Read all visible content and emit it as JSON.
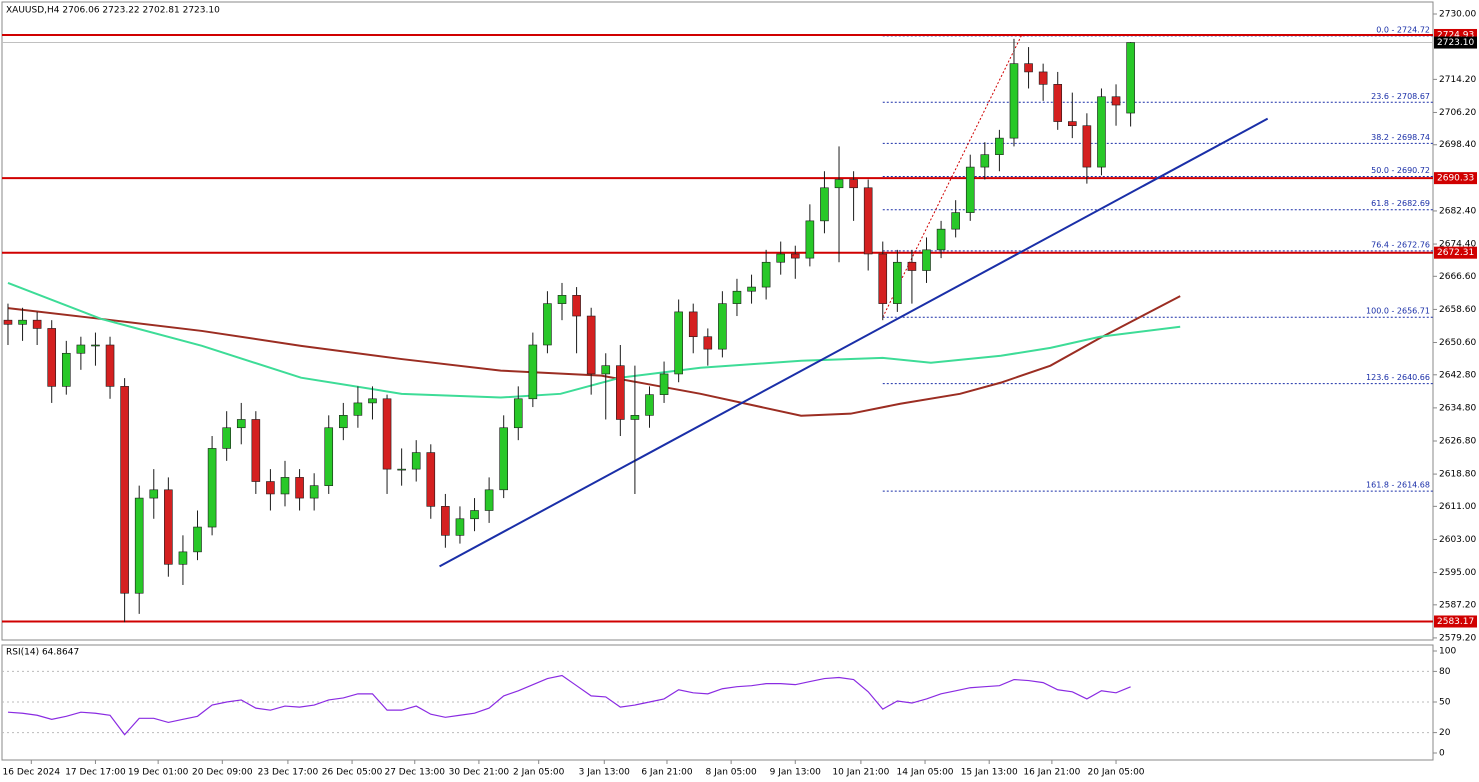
{
  "chart_data": {
    "type": "candlestick",
    "header": "XAUUSD,H4  2706.06 2723.22 2702.81 2723.10",
    "up_color": "#28c828",
    "down_color": "#d42020",
    "outline": "#1a1a1a",
    "xlim": [
      -0.41,
      97.74
    ],
    "ylim": [
      2578.7,
      2732.9
    ],
    "yticks": [
      {
        "value": 2730,
        "label": "2730.00"
      },
      {
        "value": 2714.2,
        "label": "2714.20"
      },
      {
        "value": 2706.2,
        "label": "2706.20"
      },
      {
        "value": 2698.4,
        "label": "2698.40"
      },
      {
        "value": 2682.4,
        "label": "2682.40"
      },
      {
        "value": 2674.4,
        "label": "2674.40"
      },
      {
        "value": 2666.6,
        "label": "2666.60"
      },
      {
        "value": 2658.6,
        "label": "2658.60"
      },
      {
        "value": 2650.6,
        "label": "2650.60"
      },
      {
        "value": 2642.8,
        "label": "2642.80"
      },
      {
        "value": 2634.8,
        "label": "2634.80"
      },
      {
        "value": 2626.8,
        "label": "2626.80"
      },
      {
        "value": 2618.8,
        "label": "2618.80"
      },
      {
        "value": 2611,
        "label": "2611.00"
      },
      {
        "value": 2603,
        "label": "2603.00"
      },
      {
        "value": 2595,
        "label": "2595.00"
      },
      {
        "value": 2587.2,
        "label": "2587.20"
      },
      {
        "value": 2579.2,
        "label": "2579.20"
      }
    ],
    "xticks": [
      {
        "value": 1.6,
        "label": "16 Dec 2024"
      },
      {
        "value": 6,
        "label": "17 Dec 17:00"
      },
      {
        "value": 10.3,
        "label": "19 Dec 01:00"
      },
      {
        "value": 14.7,
        "label": "20 Dec 09:00"
      },
      {
        "value": 19.2,
        "label": "23 Dec 17:00"
      },
      {
        "value": 23.6,
        "label": "26 Dec 05:00"
      },
      {
        "value": 27.9,
        "label": "27 Dec 13:00"
      },
      {
        "value": 32.3,
        "label": "30 Dec 21:00"
      },
      {
        "value": 36.4,
        "label": "2 Jan 05:00"
      },
      {
        "value": 40.9,
        "label": "3 Jan 13:00"
      },
      {
        "value": 45.2,
        "label": "6 Jan 21:00"
      },
      {
        "value": 49.6,
        "label": "8 Jan 05:00"
      },
      {
        "value": 54,
        "label": "9 Jan 13:00"
      },
      {
        "value": 58.5,
        "label": "10 Jan 21:00"
      },
      {
        "value": 62.9,
        "label": "14 Jan 05:00"
      },
      {
        "value": 67.3,
        "label": "15 Jan 13:00"
      },
      {
        "value": 71.6,
        "label": "16 Jan 21:00"
      },
      {
        "value": 76,
        "label": "20 Jan 05:00"
      }
    ],
    "candles": [
      [
        2656,
        2660,
        2650,
        2655
      ],
      [
        2655,
        2659,
        2651,
        2656
      ],
      [
        2656,
        2658,
        2650,
        2654
      ],
      [
        2654,
        2656,
        2636,
        2640
      ],
      [
        2640,
        2651,
        2638,
        2648
      ],
      [
        2648,
        2652,
        2644,
        2650
      ],
      [
        2650,
        2653,
        2645,
        2650
      ],
      [
        2650,
        2652,
        2637,
        2640
      ],
      [
        2640,
        2642,
        2583,
        2590
      ],
      [
        2590,
        2616,
        2585,
        2613
      ],
      [
        2613,
        2620,
        2608,
        2615
      ],
      [
        2615,
        2618,
        2594,
        2597
      ],
      [
        2597,
        2604,
        2592,
        2600
      ],
      [
        2600,
        2610,
        2598,
        2606
      ],
      [
        2606,
        2628,
        2604,
        2625
      ],
      [
        2625,
        2634,
        2622,
        2630
      ],
      [
        2630,
        2636,
        2626,
        2632
      ],
      [
        2632,
        2634,
        2614,
        2617
      ],
      [
        2617,
        2620,
        2610,
        2614
      ],
      [
        2614,
        2622,
        2611,
        2618
      ],
      [
        2618,
        2620,
        2610,
        2613
      ],
      [
        2613,
        2619,
        2610,
        2616
      ],
      [
        2616,
        2633,
        2614,
        2630
      ],
      [
        2630,
        2636,
        2627,
        2633
      ],
      [
        2633,
        2640,
        2630,
        2636
      ],
      [
        2636,
        2640,
        2632,
        2637
      ],
      [
        2637,
        2638,
        2614,
        2620
      ],
      [
        2620,
        2625,
        2616,
        2620
      ],
      [
        2620,
        2627,
        2617,
        2624
      ],
      [
        2624,
        2626,
        2608,
        2611
      ],
      [
        2611,
        2614,
        2601,
        2604
      ],
      [
        2604,
        2611,
        2602,
        2608
      ],
      [
        2608,
        2613,
        2605,
        2610
      ],
      [
        2610,
        2618,
        2607,
        2615
      ],
      [
        2615,
        2633,
        2613,
        2630
      ],
      [
        2630,
        2640,
        2627,
        2637
      ],
      [
        2637,
        2653,
        2635,
        2650
      ],
      [
        2650,
        2663,
        2648,
        2660
      ],
      [
        2660,
        2665,
        2656,
        2662
      ],
      [
        2662,
        2664,
        2648,
        2657
      ],
      [
        2657,
        2659,
        2638,
        2643
      ],
      [
        2643,
        2648,
        2632,
        2645
      ],
      [
        2645,
        2650,
        2628,
        2632
      ],
      [
        2632,
        2645,
        2614,
        2633
      ],
      [
        2633,
        2640,
        2630,
        2638
      ],
      [
        2638,
        2646,
        2636,
        2643
      ],
      [
        2643,
        2661,
        2641,
        2658
      ],
      [
        2658,
        2660,
        2648,
        2652
      ],
      [
        2652,
        2654,
        2645,
        2649
      ],
      [
        2649,
        2663,
        2647,
        2660
      ],
      [
        2660,
        2666,
        2657,
        2663
      ],
      [
        2663,
        2667,
        2660,
        2664
      ],
      [
        2664,
        2673,
        2661,
        2670
      ],
      [
        2670,
        2675,
        2667,
        2672
      ],
      [
        2672,
        2674,
        2666,
        2671
      ],
      [
        2671,
        2684,
        2669,
        2680
      ],
      [
        2680,
        2692,
        2677,
        2688
      ],
      [
        2688,
        2698,
        2670,
        2690
      ],
      [
        2690,
        2692,
        2680,
        2688
      ],
      [
        2688,
        2690,
        2668,
        2672
      ],
      [
        2672,
        2675,
        2656,
        2660
      ],
      [
        2660,
        2673,
        2658,
        2670
      ],
      [
        2670,
        2673,
        2660,
        2668
      ],
      [
        2668,
        2676,
        2665,
        2673
      ],
      [
        2673,
        2680,
        2671,
        2678
      ],
      [
        2678,
        2685,
        2676,
        2682
      ],
      [
        2682,
        2696,
        2680,
        2693
      ],
      [
        2693,
        2699,
        2690,
        2696
      ],
      [
        2696,
        2702,
        2692,
        2700
      ],
      [
        2700,
        2724,
        2698,
        2718
      ],
      [
        2718,
        2722,
        2712,
        2716
      ],
      [
        2716,
        2718,
        2709,
        2713
      ],
      [
        2713,
        2716,
        2702,
        2704
      ],
      [
        2704,
        2711,
        2700,
        2703
      ],
      [
        2703,
        2706,
        2689,
        2693
      ],
      [
        2693,
        2712,
        2691,
        2710
      ],
      [
        2710,
        2713,
        2703,
        2708
      ],
      [
        2706.06,
        2723.22,
        2702.81,
        2723.1
      ]
    ],
    "moving_averages": [
      {
        "color": "#9b2d22",
        "x": [
          0,
          6.4,
          13.3,
          20.1,
          27,
          33.8,
          40.7,
          47.5,
          54.4,
          57.8,
          61.2,
          65.3,
          68.1,
          71.5,
          74.9,
          80.4
        ],
        "values": [
          2658.9,
          2656.3,
          2653.4,
          2649.8,
          2646.6,
          2643.8,
          2642.6,
          2638.2,
          2632.9,
          2633.4,
          2635.8,
          2638.2,
          2640.9,
          2645,
          2651.7,
          2661.8
        ]
      },
      {
        "color": "#3ddc97",
        "x": [
          0,
          6.4,
          13.3,
          20.1,
          27,
          33.8,
          37.9,
          42,
          47.5,
          54.4,
          60,
          63.3,
          68.1,
          71.5,
          74.9,
          80.4
        ],
        "values": [
          2665,
          2656.3,
          2649.8,
          2642.1,
          2638.2,
          2637.3,
          2638.2,
          2642.1,
          2644.5,
          2646.2,
          2646.9,
          2645.7,
          2647.4,
          2649.3,
          2652,
          2654.4
        ]
      }
    ],
    "trendline": {
      "color": "#1a2fa8",
      "x": [
        29.6,
        86.4
      ],
      "values": [
        2596.5,
        2704.7
      ]
    },
    "fib_connector": {
      "color": "#d00000",
      "x": [
        60,
        69.5
      ],
      "values": [
        2656.71,
        2724.72
      ]
    },
    "fib_start": 60,
    "fib_color": "#1a2fa8",
    "fib_levels": [
      {
        "value": 2724.72,
        "label": "0.0 - 2724.72"
      },
      {
        "value": 2708.67,
        "label": "23.6 - 2708.67"
      },
      {
        "value": 2698.74,
        "label": "38.2 - 2698.74"
      },
      {
        "value": 2690.72,
        "label": "50.0 - 2690.72"
      },
      {
        "value": 2682.69,
        "label": "61.8 - 2682.69"
      },
      {
        "value": 2672.76,
        "label": "76.4 - 2672.76"
      },
      {
        "value": 2656.71,
        "label": "100.0 - 2656.71"
      },
      {
        "value": 2640.66,
        "label": "123.6 - 2640.66"
      },
      {
        "value": 2614.68,
        "label": "161.8 - 2614.68"
      }
    ],
    "levels": [
      2724.93,
      2690.33,
      2672.31,
      2583.17
    ],
    "level_color": "#d00000",
    "current_price": {
      "value": 2723.1,
      "label": "2723.10"
    },
    "rsi": {
      "title": "RSI(14) 64.8647",
      "color": "#8a2be2",
      "ylim": [
        0,
        100
      ],
      "yticks": [
        100,
        80,
        50,
        20,
        0
      ],
      "values": [
        40,
        39,
        37,
        33,
        36,
        40,
        39,
        37,
        18,
        34,
        34,
        30,
        33,
        36,
        47,
        50,
        52,
        44,
        42,
        46,
        45,
        47,
        52,
        54,
        58,
        58,
        42,
        42,
        46,
        38,
        35,
        37,
        39,
        44,
        56,
        61,
        67,
        73,
        76,
        66,
        56,
        55,
        45,
        47,
        50,
        53,
        62,
        59,
        58,
        63,
        65,
        66,
        68,
        68,
        67,
        70,
        73,
        74,
        72,
        60,
        43,
        51,
        49,
        53,
        58,
        61,
        64,
        65,
        66,
        72,
        71,
        69,
        62,
        60,
        53,
        61,
        59,
        64.8647
      ]
    }
  }
}
